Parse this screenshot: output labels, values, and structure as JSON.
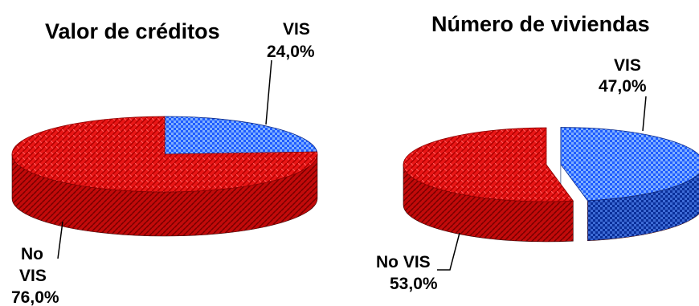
{
  "chart_data": [
    {
      "type": "pie",
      "title": "Valor de créditos",
      "categories": [
        "VIS",
        "No VIS"
      ],
      "values": [
        24.0,
        76.0
      ],
      "value_labels": [
        "24,0%",
        "76,0%"
      ],
      "colors": [
        "#1e5bff",
        "#e81010"
      ],
      "style": "3d",
      "legend": "none"
    },
    {
      "type": "pie",
      "title": "Número de viviendas",
      "categories": [
        "VIS",
        "No VIS"
      ],
      "values": [
        47.0,
        53.0
      ],
      "value_labels": [
        "47,0%",
        "53,0%"
      ],
      "colors": [
        "#1e5bff",
        "#e81010"
      ],
      "style": "3d-exploded",
      "legend": "none"
    }
  ]
}
